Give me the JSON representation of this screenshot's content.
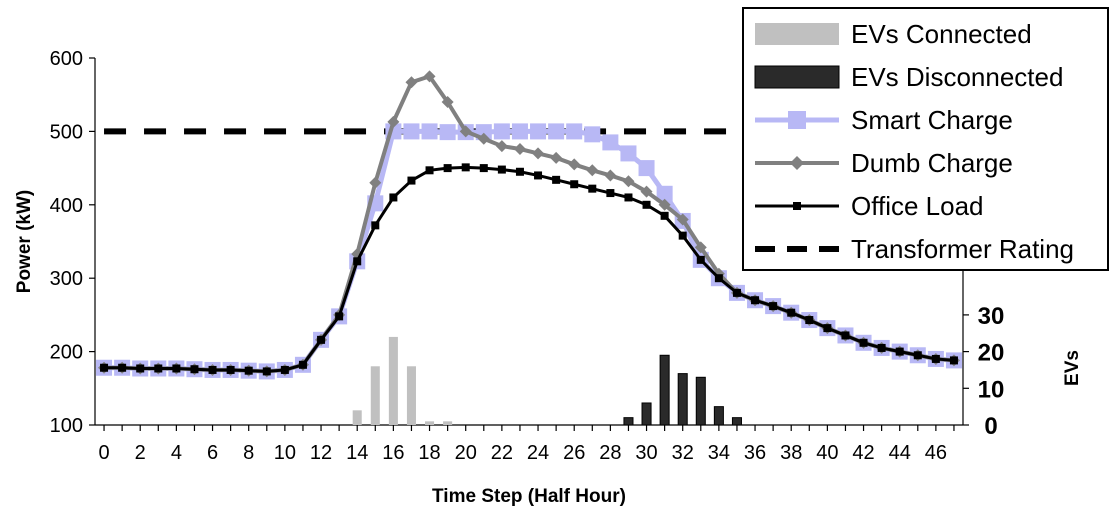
{
  "chart_data": {
    "type": "bar+line",
    "title": "",
    "xlabel": "Time Step (Half Hour)",
    "ylabel": "Power (kW)",
    "y2label": "EVs",
    "xlim": [
      -0.5,
      47.5
    ],
    "ylim": [
      100,
      600
    ],
    "y2lim": [
      0,
      100
    ],
    "x_ticks": [
      0,
      2,
      4,
      6,
      8,
      10,
      12,
      14,
      16,
      18,
      20,
      22,
      24,
      26,
      28,
      30,
      32,
      34,
      36,
      38,
      40,
      42,
      44,
      46
    ],
    "y_ticks": [
      100,
      200,
      300,
      400,
      500,
      600
    ],
    "y2_ticks_visible": [
      0,
      10,
      20,
      30
    ],
    "x": [
      0,
      1,
      2,
      3,
      4,
      5,
      6,
      7,
      8,
      9,
      10,
      11,
      12,
      13,
      14,
      15,
      16,
      17,
      18,
      19,
      20,
      21,
      22,
      23,
      24,
      25,
      26,
      27,
      28,
      29,
      30,
      31,
      32,
      33,
      34,
      35,
      36,
      37,
      38,
      39,
      40,
      41,
      42,
      43,
      44,
      45,
      46,
      47
    ],
    "legend_position": "top-right",
    "colors": {
      "ev_connected": "#c0c0c0",
      "ev_disconnected": "#2a2a2a",
      "smart_charge": "#b8b8f5",
      "dumb_charge": "#808080",
      "office_load": "#000000",
      "transformer": "#000000"
    },
    "legend": [
      {
        "label": "EVs Connected",
        "key": "ev_connected",
        "style": "bar-light"
      },
      {
        "label": "EVs Disconnected",
        "key": "ev_disconnected",
        "style": "bar-dark"
      },
      {
        "label": "Smart Charge",
        "key": "smart_charge",
        "style": "line-square"
      },
      {
        "label": "Dumb Charge",
        "key": "dumb_charge",
        "style": "line-diamond"
      },
      {
        "label": "Office Load",
        "key": "office_load",
        "style": "line-small-square"
      },
      {
        "label": "Transformer Rating",
        "key": "transformer",
        "style": "dashed"
      }
    ],
    "bars": [
      {
        "name": "EVs Connected",
        "axis": "y2",
        "key": "ev_connected",
        "points": [
          [
            14,
            4
          ],
          [
            15,
            16
          ],
          [
            16,
            24
          ],
          [
            17,
            16
          ],
          [
            18,
            1
          ],
          [
            19,
            1
          ]
        ]
      },
      {
        "name": "EVs Disconnected",
        "axis": "y2",
        "key": "ev_disconnected",
        "points": [
          [
            29,
            2
          ],
          [
            30,
            6
          ],
          [
            31,
            19
          ],
          [
            32,
            14
          ],
          [
            33,
            13
          ],
          [
            34,
            5
          ],
          [
            35,
            2
          ]
        ]
      }
    ],
    "series": [
      {
        "name": "Office Load",
        "key": "office_load",
        "values": [
          178,
          178,
          177,
          177,
          177,
          176,
          175,
          175,
          174,
          173,
          175,
          182,
          216,
          248,
          323,
          372,
          410,
          433,
          447,
          450,
          451,
          450,
          448,
          445,
          440,
          434,
          428,
          422,
          416,
          410,
          400,
          385,
          358,
          325,
          300,
          280,
          270,
          262,
          253,
          243,
          232,
          222,
          212,
          205,
          200,
          195,
          190,
          188
        ]
      },
      {
        "name": "Dumb Charge",
        "key": "dumb_charge",
        "values": [
          178,
          178,
          177,
          177,
          177,
          176,
          175,
          175,
          174,
          173,
          175,
          182,
          216,
          250,
          333,
          430,
          513,
          567,
          575,
          540,
          500,
          490,
          480,
          476,
          470,
          464,
          455,
          447,
          440,
          432,
          418,
          400,
          380,
          342,
          306,
          280,
          270,
          262,
          253,
          243,
          232,
          222,
          212,
          205,
          200,
          195,
          190,
          188
        ]
      },
      {
        "name": "Smart Charge",
        "key": "smart_charge",
        "values": [
          178,
          178,
          177,
          177,
          177,
          176,
          175,
          175,
          174,
          173,
          175,
          182,
          216,
          248,
          323,
          402,
          500,
          500,
          500,
          499,
          499,
          499,
          500,
          500,
          500,
          500,
          500,
          496,
          485,
          470,
          450,
          415,
          378,
          325,
          300,
          280,
          270,
          262,
          253,
          243,
          232,
          222,
          212,
          205,
          200,
          195,
          190,
          188
        ]
      },
      {
        "name": "Transformer Rating",
        "key": "transformer",
        "constant": 500
      }
    ]
  }
}
